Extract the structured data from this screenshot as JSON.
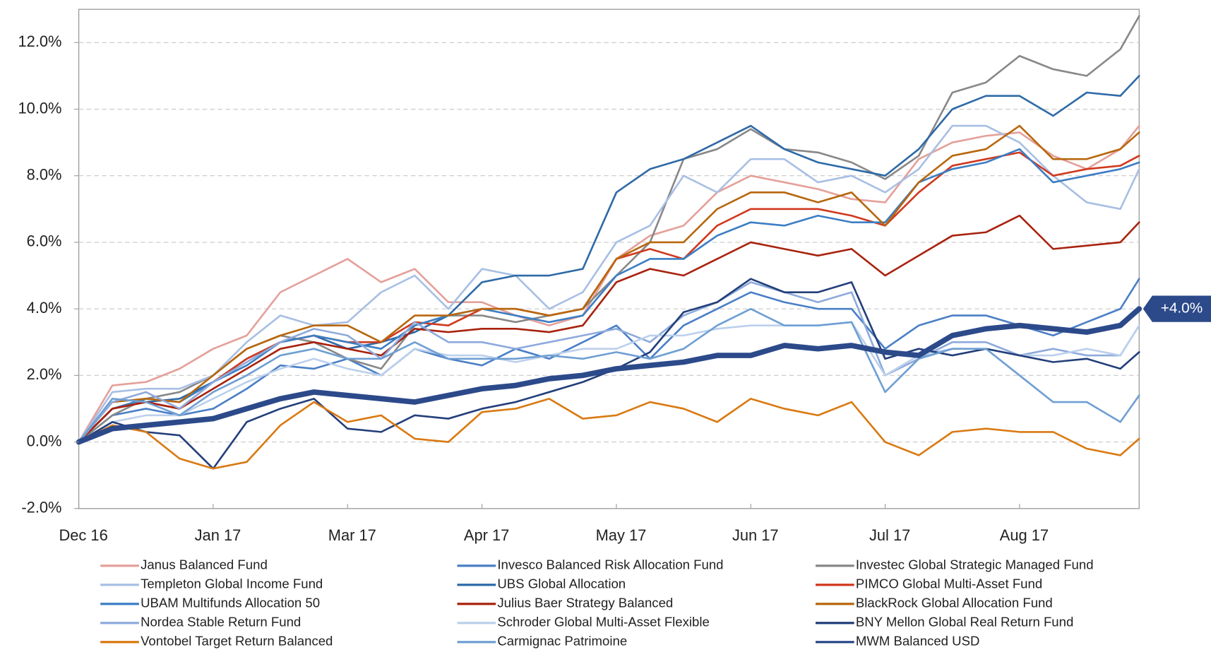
{
  "chart_data": {
    "type": "line",
    "annotation": "+4.0%",
    "x": [
      0,
      0.25,
      0.5,
      0.75,
      1,
      1.25,
      1.5,
      1.75,
      2,
      2.25,
      2.5,
      2.75,
      3,
      3.25,
      3.5,
      3.75,
      4,
      4.25,
      4.5,
      4.75,
      5,
      5.25,
      5.5,
      5.75,
      6,
      6.25,
      6.5,
      6.75,
      7,
      7.25,
      7.5,
      7.75,
      7.89
    ],
    "xlim": [
      0,
      7.89
    ],
    "xticks": [
      {
        "value": 0,
        "label": "Dec 16"
      },
      {
        "value": 1,
        "label": "Jan 17"
      },
      {
        "value": 2,
        "label": "Mar 17"
      },
      {
        "value": 3,
        "label": "Apr 17"
      },
      {
        "value": 4,
        "label": "May 17"
      },
      {
        "value": 5,
        "label": "Jun 17"
      },
      {
        "value": 6,
        "label": "Jul 17"
      },
      {
        "value": 7,
        "label": "Aug 17"
      }
    ],
    "ylim": [
      -2,
      13
    ],
    "yticks": [
      {
        "value": -2,
        "label": "-2.0%"
      },
      {
        "value": 0,
        "label": "0.0%"
      },
      {
        "value": 2,
        "label": "2.0%"
      },
      {
        "value": 4,
        "label": "4.0%"
      },
      {
        "value": 6,
        "label": "6.0%"
      },
      {
        "value": 8,
        "label": "8.0%"
      },
      {
        "value": 10,
        "label": "10.0%"
      },
      {
        "value": 12,
        "label": "12.0%"
      }
    ],
    "grid": true,
    "series": [
      {
        "name": "Janus Balanced Fund",
        "color": "#e4a09a",
        "values": [
          0,
          1.7,
          1.8,
          2.2,
          2.8,
          3.2,
          4.5,
          5.0,
          5.5,
          4.8,
          5.2,
          4.2,
          4.2,
          3.8,
          3.5,
          3.8,
          5.5,
          6.2,
          6.5,
          7.5,
          8.0,
          7.8,
          7.6,
          7.3,
          7.2,
          8.5,
          9.0,
          9.2,
          9.3,
          8.6,
          8.2,
          8.8,
          9.5
        ]
      },
      {
        "name": "Invesco Balanced Risk Allocation Fund",
        "color": "#4a7fc6",
        "values": [
          0,
          0.8,
          1.0,
          0.8,
          1.0,
          1.6,
          2.3,
          2.2,
          2.5,
          2.0,
          2.8,
          2.5,
          2.3,
          2.8,
          2.5,
          3.0,
          3.5,
          2.5,
          3.5,
          4.0,
          4.5,
          4.2,
          4.0,
          4.0,
          2.8,
          3.5,
          3.8,
          3.8,
          3.5,
          3.2,
          3.6,
          4.0,
          4.9
        ]
      },
      {
        "name": "Investec Global Strategic Managed Fund",
        "color": "#888888",
        "values": [
          0,
          0.8,
          1.3,
          1.5,
          2.0,
          2.8,
          3.2,
          3.0,
          2.5,
          2.2,
          3.5,
          3.8,
          3.8,
          3.6,
          3.8,
          4.0,
          5.0,
          6.0,
          8.5,
          8.8,
          9.4,
          8.8,
          8.7,
          8.4,
          7.9,
          8.6,
          10.5,
          10.8,
          11.6,
          11.2,
          11.0,
          11.8,
          12.8
        ]
      },
      {
        "name": "Templeton Global Income Fund",
        "color": "#a8bfe4",
        "values": [
          0,
          1.5,
          1.6,
          1.6,
          2.0,
          3.0,
          3.8,
          3.5,
          3.6,
          4.5,
          5.0,
          4.0,
          5.2,
          5.0,
          4.0,
          4.5,
          6.0,
          6.5,
          8.0,
          7.5,
          8.5,
          8.5,
          7.8,
          8.0,
          7.5,
          8.2,
          9.5,
          9.5,
          9.0,
          8.0,
          7.2,
          7.0,
          8.2
        ]
      },
      {
        "name": "UBS Global Allocation",
        "color": "#2e6aa7",
        "values": [
          0,
          1.0,
          1.2,
          1.3,
          1.8,
          2.5,
          3.0,
          3.2,
          2.8,
          3.0,
          3.3,
          3.8,
          4.8,
          5.0,
          5.0,
          5.2,
          7.5,
          8.2,
          8.5,
          9.0,
          9.5,
          8.8,
          8.4,
          8.2,
          8.0,
          8.8,
          10.0,
          10.4,
          10.4,
          9.8,
          10.5,
          10.4,
          11.0
        ]
      },
      {
        "name": "PIMCO Global Multi-Asset Fund",
        "color": "#d0391f",
        "values": [
          0,
          1.0,
          1.2,
          1.0,
          1.8,
          2.5,
          3.0,
          3.2,
          3.0,
          3.0,
          3.6,
          3.5,
          4.0,
          4.0,
          3.8,
          4.0,
          5.5,
          5.8,
          5.5,
          6.5,
          7.0,
          7.0,
          7.0,
          6.8,
          6.5,
          7.5,
          8.3,
          8.5,
          8.7,
          8.0,
          8.2,
          8.3,
          8.6
        ]
      },
      {
        "name": "UBAM Multifunds Allocation 50",
        "color": "#3c7ec4",
        "values": [
          0,
          1.0,
          1.3,
          1.2,
          1.8,
          2.3,
          3.0,
          3.2,
          3.0,
          2.8,
          3.5,
          3.8,
          4.0,
          3.8,
          3.6,
          3.8,
          5.0,
          5.5,
          5.5,
          6.2,
          6.6,
          6.5,
          6.8,
          6.6,
          6.6,
          7.8,
          8.2,
          8.4,
          8.8,
          7.8,
          8.0,
          8.2,
          8.4
        ]
      },
      {
        "name": "Julius Baer Strategy Balanced",
        "color": "#a8230f",
        "values": [
          0,
          1.0,
          1.2,
          1.0,
          1.6,
          2.2,
          2.8,
          3.0,
          2.8,
          2.6,
          3.4,
          3.3,
          3.4,
          3.4,
          3.3,
          3.5,
          4.8,
          5.2,
          5.0,
          5.5,
          6.0,
          5.8,
          5.6,
          5.8,
          5.0,
          5.6,
          6.2,
          6.3,
          6.8,
          5.8,
          5.9,
          6.0,
          6.6
        ]
      },
      {
        "name": "BlackRock Global Allocation Fund",
        "color": "#b8670e",
        "values": [
          0,
          1.2,
          1.3,
          1.2,
          2.0,
          2.8,
          3.2,
          3.5,
          3.5,
          3.0,
          3.8,
          3.8,
          4.0,
          4.0,
          3.8,
          4.0,
          5.5,
          6.0,
          6.0,
          7.0,
          7.5,
          7.5,
          7.2,
          7.5,
          6.5,
          7.8,
          8.6,
          8.8,
          9.5,
          8.5,
          8.5,
          8.8,
          9.3
        ]
      },
      {
        "name": "Nordea Stable Return Fund",
        "color": "#8eaadc",
        "values": [
          0,
          1.2,
          1.5,
          1.0,
          1.8,
          2.4,
          3.0,
          3.4,
          3.2,
          2.5,
          3.6,
          3.0,
          3.0,
          2.8,
          3.0,
          3.2,
          3.4,
          3.0,
          3.8,
          4.2,
          4.8,
          4.5,
          4.2,
          4.5,
          2.0,
          2.5,
          3.0,
          3.0,
          2.6,
          2.8,
          2.6,
          2.6,
          3.5
        ]
      },
      {
        "name": "Schroder Global Multi-Asset Flexible",
        "color": "#bcd0ec",
        "values": [
          0,
          0.6,
          0.8,
          0.8,
          1.3,
          1.8,
          2.2,
          2.5,
          2.2,
          2.0,
          2.8,
          2.6,
          2.6,
          2.4,
          2.6,
          2.8,
          2.8,
          3.2,
          3.2,
          3.4,
          3.5,
          3.5,
          3.5,
          3.6,
          2.0,
          2.6,
          2.8,
          2.8,
          2.6,
          2.6,
          2.8,
          2.6,
          3.5
        ]
      },
      {
        "name": "BNY Mellon Global Real Return Fund",
        "color": "#233f7a",
        "values": [
          0,
          0.6,
          0.3,
          0.2,
          -0.8,
          0.6,
          1.0,
          1.3,
          0.4,
          0.3,
          0.8,
          0.7,
          1.0,
          1.2,
          1.5,
          1.8,
          2.2,
          2.7,
          3.9,
          4.2,
          4.9,
          4.5,
          4.5,
          4.8,
          2.5,
          2.8,
          2.6,
          2.8,
          2.6,
          2.4,
          2.5,
          2.2,
          2.7
        ]
      },
      {
        "name": "Vontobel Target Return Balanced",
        "color": "#d97a12",
        "values": [
          0,
          0.5,
          0.3,
          -0.5,
          -0.8,
          -0.6,
          0.5,
          1.2,
          0.6,
          0.8,
          0.1,
          0.0,
          0.9,
          1.0,
          1.3,
          0.7,
          0.8,
          1.2,
          1.0,
          0.6,
          1.3,
          1.0,
          0.8,
          1.2,
          0.0,
          -0.4,
          0.3,
          0.4,
          0.3,
          0.3,
          -0.2,
          -0.4,
          0.1
        ]
      },
      {
        "name": "Carmignac Patrimoine",
        "color": "#6f9fd3",
        "values": [
          0,
          1.3,
          1.2,
          0.8,
          1.5,
          2.0,
          2.6,
          2.8,
          2.5,
          2.5,
          3.0,
          2.5,
          2.5,
          2.5,
          2.6,
          2.5,
          2.7,
          2.5,
          2.8,
          3.5,
          4.0,
          3.5,
          3.5,
          3.6,
          1.5,
          2.5,
          2.8,
          2.8,
          2.0,
          1.2,
          1.2,
          0.6,
          1.4
        ]
      },
      {
        "name": "MWM Balanced USD",
        "color": "#2c4a8a",
        "highlight": true,
        "values": [
          0,
          0.4,
          0.5,
          0.6,
          0.7,
          1.0,
          1.3,
          1.5,
          1.4,
          1.3,
          1.2,
          1.4,
          1.6,
          1.7,
          1.9,
          2.0,
          2.2,
          2.3,
          2.4,
          2.6,
          2.6,
          2.9,
          2.8,
          2.9,
          2.7,
          2.6,
          3.2,
          3.4,
          3.5,
          3.4,
          3.3,
          3.5,
          4.0
        ]
      }
    ]
  }
}
